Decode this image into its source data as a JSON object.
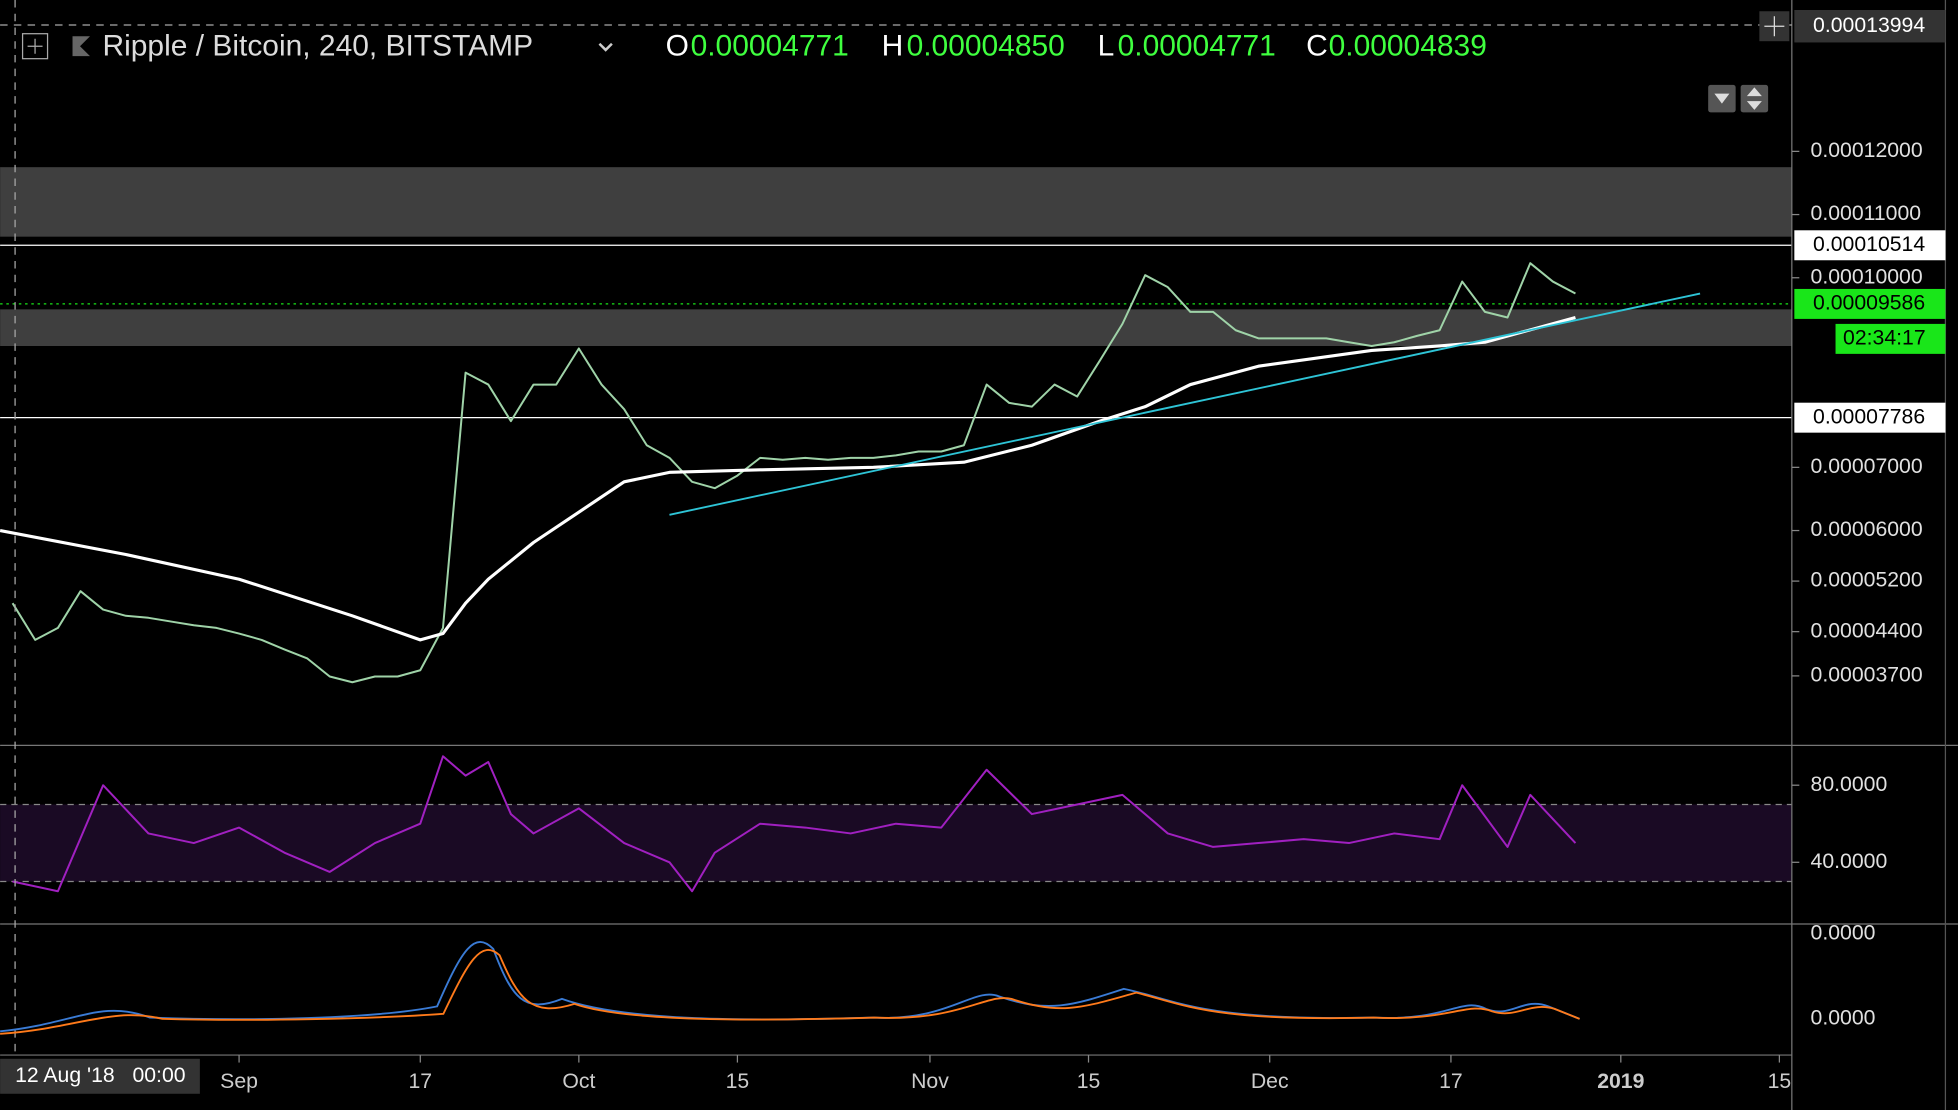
{
  "header": {
    "symbol": "Ripple / Bitcoin, 240, BITSTAMP",
    "ohlc": [
      {
        "key": "O",
        "value": "0.00004771"
      },
      {
        "key": "H",
        "value": "0.00004850"
      },
      {
        "key": "L",
        "value": "0.00004771"
      },
      {
        "key": "C",
        "value": "0.00004839"
      }
    ]
  },
  "crosshair": {
    "price": 0.00013994,
    "date": "12 Aug '18",
    "time": "00:00"
  },
  "macd_pane": {
    "tick_labels": [
      "0.0000",
      "0.0000"
    ]
  },
  "chart_data": [
    {
      "type": "line",
      "xlim": [
        -1.1,
        157.1
      ],
      "xticks": [
        {
          "value": 20,
          "label": "Sep"
        },
        {
          "value": 36,
          "label": "17"
        },
        {
          "value": 50,
          "label": "Oct"
        },
        {
          "value": 64,
          "label": "15"
        },
        {
          "value": 81,
          "label": "Nov"
        },
        {
          "value": 95,
          "label": "15"
        },
        {
          "value": 111,
          "label": "Dec"
        },
        {
          "value": 127,
          "label": "17"
        },
        {
          "value": 142,
          "label": "2019"
        },
        {
          "value": 156,
          "label": "15"
        }
      ],
      "ylim": [
        2.6e-05,
        0.00014
      ],
      "yticks": [
        {
          "value": 0.00012,
          "label": "0.00012000"
        },
        {
          "value": 0.00011,
          "label": "0.00011000"
        },
        {
          "value": 0.0001,
          "label": "0.00010000"
        },
        {
          "value": 7e-05,
          "label": "0.00007000"
        },
        {
          "value": 6e-05,
          "label": "0.00006000"
        },
        {
          "value": 5.2e-05,
          "label": "0.00005200"
        },
        {
          "value": 4.4e-05,
          "label": "0.00004400"
        },
        {
          "value": 3.7e-05,
          "label": "0.00003700"
        }
      ],
      "zones": [
        {
          "color": "#4a4a4a",
          "range": [
            0.0001065,
            0.0001175
          ]
        },
        {
          "color": "#4a4a4a",
          "range": [
            8.92e-05,
            9.5e-05
          ]
        }
      ],
      "levels": [
        {
          "value": 0.00010514,
          "color": "#ffffff"
        },
        {
          "value": 9.586e-05,
          "color": "#19e619",
          "countdown": "02:34:17"
        },
        {
          "value": 7.786e-05,
          "color": "#ffffff"
        }
      ],
      "trendline": {
        "color": "#2ec4d6",
        "x": [
          58,
          149
        ],
        "values": [
          6.25e-05,
          9.75e-05
        ]
      },
      "series": [
        {
          "color": "#9fd3a8",
          "x": [
            0,
            2,
            4,
            6,
            8,
            10,
            12,
            14,
            16,
            18,
            20,
            22,
            24,
            26,
            28,
            30,
            32,
            34,
            36,
            38,
            40,
            42,
            44,
            46,
            48,
            50,
            52,
            54,
            56,
            58,
            60,
            62,
            64,
            66,
            68,
            70,
            72,
            74,
            76,
            78,
            80,
            82,
            84,
            86,
            88,
            90,
            92,
            94,
            96,
            98,
            100,
            102,
            104,
            106,
            108,
            110,
            112,
            114,
            116,
            118,
            120,
            122,
            124,
            126,
            128,
            130,
            132,
            134,
            136,
            138
          ],
          "values": [
            4.85e-05,
            4.27e-05,
            4.46e-05,
            5.04e-05,
            4.75e-05,
            4.65e-05,
            4.62e-05,
            4.56e-05,
            4.5e-05,
            4.46e-05,
            4.37e-05,
            4.27e-05,
            4.12e-05,
            3.98e-05,
            3.69e-05,
            3.6e-05,
            3.69e-05,
            3.69e-05,
            3.79e-05,
            4.46e-05,
            8.5e-05,
            8.31e-05,
            7.73e-05,
            8.31e-05,
            8.31e-05,
            8.88e-05,
            8.31e-05,
            7.92e-05,
            7.35e-05,
            7.15e-05,
            6.77e-05,
            6.67e-05,
            6.87e-05,
            7.15e-05,
            7.12e-05,
            7.15e-05,
            7.12e-05,
            7.15e-05,
            7.15e-05,
            7.19e-05,
            7.25e-05,
            7.25e-05,
            7.35e-05,
            8.31e-05,
            8.02e-05,
            7.96e-05,
            8.31e-05,
            8.12e-05,
            8.69e-05,
            9.27e-05,
            0.0001004,
            9.85e-05,
            9.46e-05,
            9.46e-05,
            9.17e-05,
            9.04e-05,
            9.04e-05,
            9.04e-05,
            9.04e-05,
            8.98e-05,
            8.92e-05,
            8.98e-05,
            9.08e-05,
            9.17e-05,
            9.94e-05,
            9.46e-05,
            9.37e-05,
            0.0001023,
            9.94e-05,
            9.75e-05
          ]
        },
        {
          "color": "#ffffff",
          "x": [
            -1.1,
            10,
            20,
            30,
            36,
            38,
            40,
            42,
            46,
            50,
            54,
            58,
            66,
            76,
            84,
            90,
            96,
            100,
            104,
            110,
            120,
            126,
            130,
            138
          ],
          "values": [
            6e-05,
            5.62e-05,
            5.23e-05,
            4.65e-05,
            4.27e-05,
            4.37e-05,
            4.85e-05,
            5.23e-05,
            5.81e-05,
            6.29e-05,
            6.77e-05,
            6.92e-05,
            6.96e-05,
            7e-05,
            7.08e-05,
            7.35e-05,
            7.73e-05,
            7.96e-05,
            8.31e-05,
            8.6e-05,
            8.85e-05,
            8.92e-05,
            8.98e-05,
            9.37e-05
          ]
        }
      ]
    },
    {
      "type": "line",
      "xlim": [
        -1.1,
        157.1
      ],
      "ylim": [
        8,
        100
      ],
      "yticks": [
        {
          "value": 80,
          "label": "80.0000"
        },
        {
          "value": 40,
          "label": "40.0000"
        }
      ],
      "band": [
        30,
        70
      ],
      "series": [
        {
          "color": "#a020c0",
          "x": [
            0,
            4,
            8,
            12,
            16,
            20,
            24,
            28,
            32,
            36,
            38,
            40,
            42,
            44,
            46,
            50,
            54,
            58,
            60,
            62,
            66,
            70,
            74,
            78,
            82,
            86,
            90,
            94,
            98,
            102,
            106,
            110,
            114,
            118,
            122,
            126,
            128,
            132,
            134,
            138
          ],
          "values": [
            30,
            25,
            80,
            55,
            50,
            58,
            45,
            35,
            50,
            60,
            95,
            85,
            92,
            65,
            55,
            68,
            50,
            40,
            25,
            45,
            60,
            58,
            55,
            60,
            58,
            88,
            65,
            70,
            75,
            55,
            48,
            50,
            52,
            50,
            55,
            52,
            80,
            48,
            75,
            50
          ]
        }
      ]
    }
  ]
}
